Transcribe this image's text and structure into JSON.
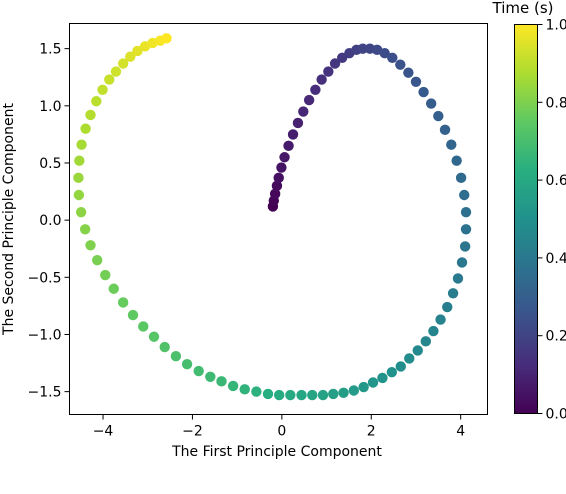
{
  "chart_data": {
    "type": "scatter",
    "title": "",
    "xlabel": "The First Principle Component",
    "ylabel": "The Second Principle Component",
    "xlim": [
      -4.75,
      4.6
    ],
    "ylim": [
      -1.7,
      1.72
    ],
    "xticks": [
      -4,
      -2,
      0,
      2,
      4
    ],
    "xtick_labels": [
      "−4",
      "−2",
      "0",
      "2",
      "4"
    ],
    "yticks": [
      -1.5,
      -1.0,
      -0.5,
      0.0,
      0.5,
      1.0,
      1.5
    ],
    "ytick_labels": [
      "−1.5",
      "−1.0",
      "−0.5",
      "0.0",
      "0.5",
      "1.0",
      "1.5"
    ],
    "grid": false,
    "colormap": "viridis",
    "colorbar": {
      "title": "Time (s)",
      "range": [
        0.0,
        1.0
      ],
      "ticks": [
        0.0,
        0.2,
        0.4,
        0.6,
        0.8,
        1.0
      ],
      "tick_labels": [
        "0.0",
        "0.2",
        "0.4",
        "0.6",
        "0.8",
        "1.0"
      ]
    },
    "series": [
      {
        "x": [
          -0.2,
          -0.18,
          -0.15,
          -0.11,
          -0.07,
          -0.01,
          0.06,
          0.15,
          0.25,
          0.36,
          0.48,
          0.61,
          0.75,
          0.89,
          1.04,
          1.19,
          1.35,
          1.51,
          1.67,
          1.81,
          1.97,
          2.13,
          2.3,
          2.47,
          2.65,
          2.83,
          3.0,
          3.17,
          3.34,
          3.5,
          3.65,
          3.79,
          3.91,
          4.01,
          4.08,
          4.12,
          4.12,
          4.1,
          4.03,
          3.94,
          3.83,
          3.7,
          3.55,
          3.39,
          3.22,
          3.04,
          2.85,
          2.66,
          2.46,
          2.25,
          2.04,
          1.83,
          1.61,
          1.38,
          1.15,
          0.92,
          0.68,
          0.44,
          0.19,
          -0.06,
          -0.31,
          -0.57,
          -0.83,
          -1.09,
          -1.35,
          -1.6,
          -1.86,
          -2.12,
          -2.37,
          -2.62,
          -2.86,
          -3.1,
          -3.33,
          -3.55,
          -3.76,
          -3.95,
          -4.13,
          -4.28,
          -4.4,
          -4.49,
          -4.54,
          -4.55,
          -4.53,
          -4.48,
          -4.39,
          -4.28,
          -4.15,
          -4.01,
          -3.86,
          -3.71,
          -3.55,
          -3.39,
          -3.23,
          -3.06,
          -2.89,
          -2.72,
          -2.58
        ],
        "y": [
          0.12,
          0.17,
          0.23,
          0.3,
          0.37,
          0.46,
          0.55,
          0.65,
          0.75,
          0.85,
          0.95,
          1.05,
          1.14,
          1.23,
          1.3,
          1.37,
          1.42,
          1.46,
          1.49,
          1.5,
          1.5,
          1.49,
          1.46,
          1.42,
          1.36,
          1.29,
          1.21,
          1.12,
          1.02,
          0.91,
          0.79,
          0.66,
          0.52,
          0.37,
          0.22,
          0.07,
          -0.08,
          -0.23,
          -0.37,
          -0.51,
          -0.64,
          -0.76,
          -0.87,
          -0.97,
          -1.06,
          -1.14,
          -1.21,
          -1.28,
          -1.33,
          -1.38,
          -1.42,
          -1.46,
          -1.49,
          -1.51,
          -1.52,
          -1.53,
          -1.53,
          -1.53,
          -1.53,
          -1.53,
          -1.52,
          -1.5,
          -1.48,
          -1.45,
          -1.41,
          -1.37,
          -1.32,
          -1.26,
          -1.19,
          -1.11,
          -1.02,
          -0.93,
          -0.83,
          -0.72,
          -0.6,
          -0.48,
          -0.35,
          -0.22,
          -0.08,
          0.07,
          0.22,
          0.37,
          0.52,
          0.66,
          0.8,
          0.92,
          1.04,
          1.14,
          1.23,
          1.3,
          1.37,
          1.43,
          1.48,
          1.52,
          1.55,
          1.57,
          1.59
        ]
      }
    ]
  }
}
